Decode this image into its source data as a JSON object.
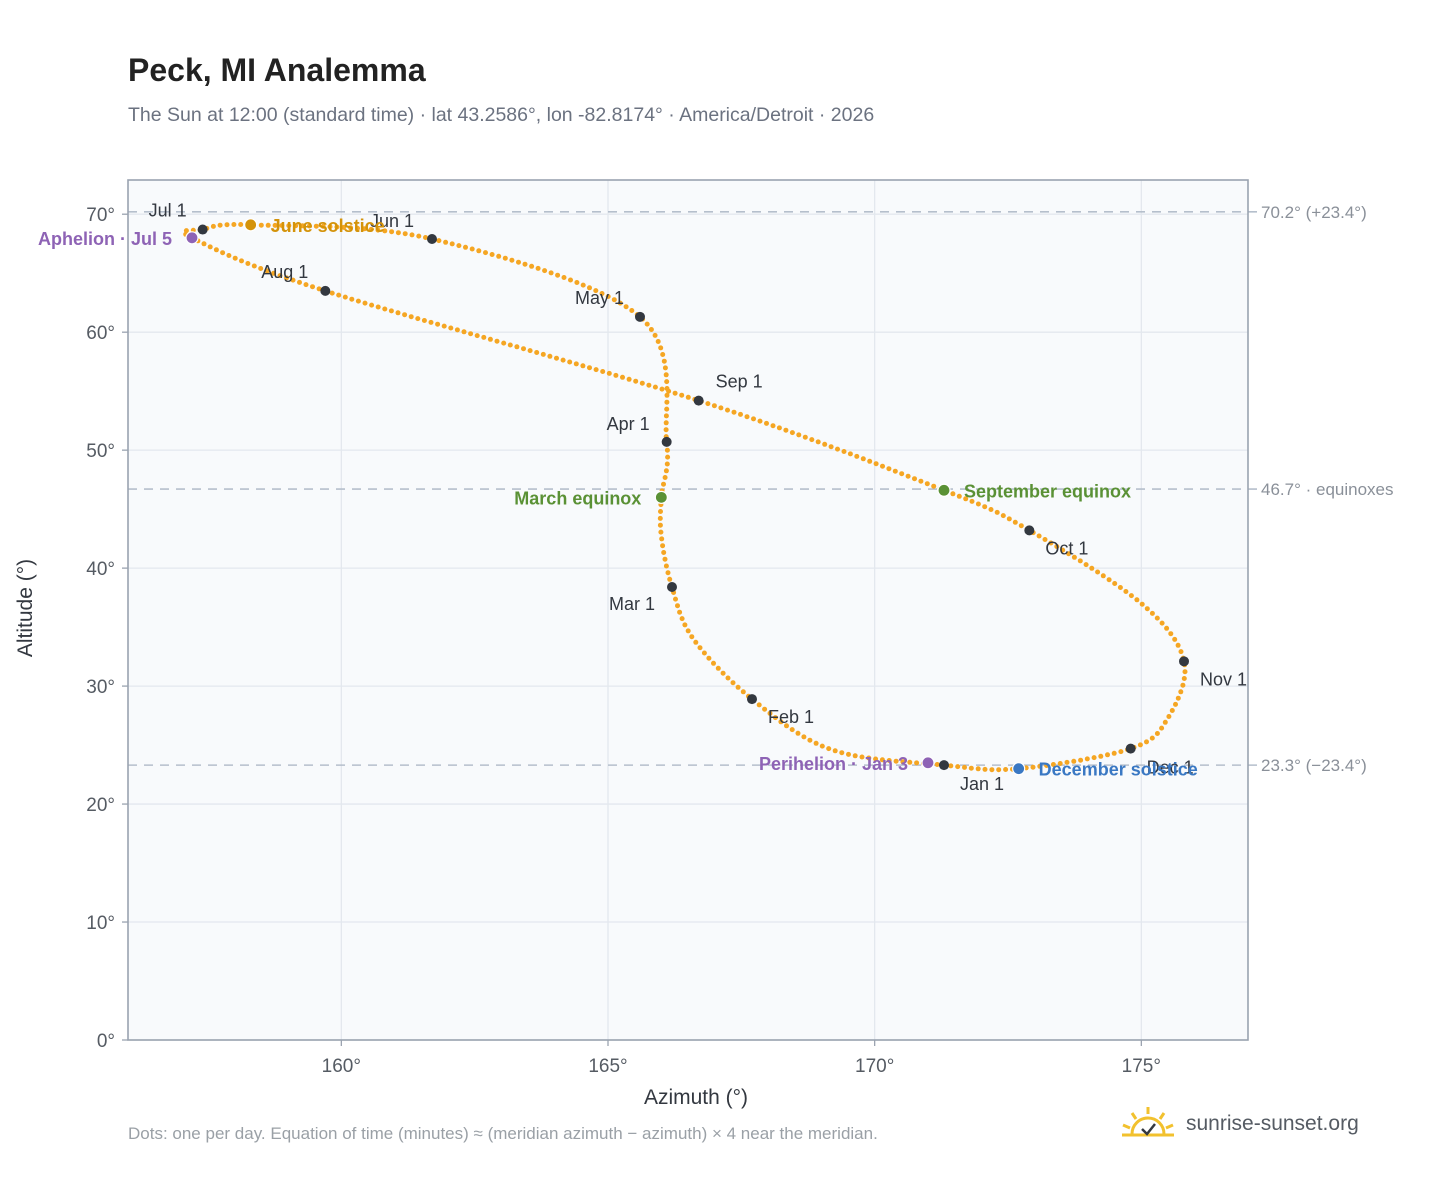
{
  "page": {
    "title": "Peck, MI Analemma",
    "subtitle": "The Sun at 12:00 (standard time) · lat 43.2586°, lon -82.8174° · America/Detroit · 2026",
    "footnote": "Dots: one per day. Equation of time (minutes) ≈ (meridian azimuth − azimuth) × 4 near the meridian.",
    "brand": "sunrise-sunset.org"
  },
  "colors": {
    "curve": "#f5a623",
    "month_marker": "#333840",
    "aphelion": "#8e63b5",
    "perihelion": "#8e63b5",
    "june_solstice": "#d4930a",
    "december_solstice": "#3a78c3",
    "equinox": "#5a9135",
    "reference_line": "#b5bfcc",
    "plot_bg": "#f8fafc",
    "frame": "#9aa3b0",
    "grid": "#e3e8ee",
    "brand_sun": "#f2c12e"
  },
  "chart_data": {
    "type": "scatter",
    "title": "Peck, MI Analemma",
    "subtitle": "The Sun at 12:00 (standard time) · lat 43.2586°, lon -82.8174° · America/Detroit · 2026",
    "xlabel": "Azimuth (°)",
    "ylabel": "Altitude (°)",
    "xlim": [
      156,
      177
    ],
    "ylim": [
      0,
      70
    ],
    "xticks": [
      160,
      165,
      170,
      175
    ],
    "yticks": [
      0,
      10,
      20,
      30,
      40,
      50,
      60,
      70
    ],
    "xtick_labels": [
      "160°",
      "165°",
      "170°",
      "175°"
    ],
    "ytick_labels": [
      "0°",
      "10°",
      "20°",
      "30°",
      "40°",
      "50°",
      "60°",
      "70°"
    ],
    "grid": true,
    "legend": "none",
    "path_points": [
      {
        "x": 171.3,
        "y": 23.3
      },
      {
        "x": 169.2,
        "y": 24.6
      },
      {
        "x": 167.7,
        "y": 28.9
      },
      {
        "x": 166.6,
        "y": 34.0
      },
      {
        "x": 166.2,
        "y": 38.4
      },
      {
        "x": 166.0,
        "y": 42.7
      },
      {
        "x": 166.0,
        "y": 46.0
      },
      {
        "x": 166.1,
        "y": 50.7
      },
      {
        "x": 165.6,
        "y": 61.3
      },
      {
        "x": 161.7,
        "y": 67.9
      },
      {
        "x": 158.3,
        "y": 69.1
      },
      {
        "x": 157.4,
        "y": 68.7
      },
      {
        "x": 157.2,
        "y": 68.0
      },
      {
        "x": 159.7,
        "y": 63.5
      },
      {
        "x": 166.7,
        "y": 54.2
      },
      {
        "x": 171.3,
        "y": 46.6
      },
      {
        "x": 172.9,
        "y": 43.2
      },
      {
        "x": 175.0,
        "y": 37.0
      },
      {
        "x": 175.8,
        "y": 32.1
      },
      {
        "x": 175.5,
        "y": 27.3
      },
      {
        "x": 174.8,
        "y": 24.7
      },
      {
        "x": 172.7,
        "y": 23.0
      },
      {
        "x": 171.3,
        "y": 23.3
      }
    ],
    "month_markers": [
      {
        "label": "Jan 1",
        "x": 171.3,
        "y": 23.3,
        "dx": 16,
        "dy": 25,
        "anchor": "start"
      },
      {
        "label": "Feb 1",
        "x": 167.7,
        "y": 28.9,
        "dx": 16,
        "dy": 24,
        "anchor": "start"
      },
      {
        "label": "Mar 1",
        "x": 166.2,
        "y": 38.4,
        "dx": -17,
        "dy": 23,
        "anchor": "end"
      },
      {
        "label": "Apr 1",
        "x": 166.1,
        "y": 50.7,
        "dx": -17,
        "dy": -12,
        "anchor": "end"
      },
      {
        "label": "May 1",
        "x": 165.6,
        "y": 61.3,
        "dx": -16,
        "dy": -13,
        "anchor": "end"
      },
      {
        "label": "Jun 1",
        "x": 161.7,
        "y": 67.9,
        "dx": -18,
        "dy": -12,
        "anchor": "end"
      },
      {
        "label": "Jul 1",
        "x": 157.4,
        "y": 68.7,
        "dx": -16,
        "dy": -13,
        "anchor": "end"
      },
      {
        "label": "Aug 1",
        "x": 159.7,
        "y": 63.5,
        "dx": -17,
        "dy": -13,
        "anchor": "end"
      },
      {
        "label": "Sep 1",
        "x": 166.7,
        "y": 54.2,
        "dx": 17,
        "dy": -13,
        "anchor": "start"
      },
      {
        "label": "Oct 1",
        "x": 172.9,
        "y": 43.2,
        "dx": 16,
        "dy": 24,
        "anchor": "start"
      },
      {
        "label": "Nov 1",
        "x": 175.8,
        "y": 32.1,
        "dx": 16,
        "dy": 24,
        "anchor": "start"
      },
      {
        "label": "Dec 1",
        "x": 174.8,
        "y": 24.7,
        "dx": 16,
        "dy": 25,
        "anchor": "start"
      }
    ],
    "events": [
      {
        "label": "Aphelion · Jul 5",
        "x": 157.2,
        "y": 68.0,
        "color": "aphelion",
        "dx": -20,
        "dy": 7,
        "anchor": "end"
      },
      {
        "label": "June solstice",
        "x": 158.3,
        "y": 69.1,
        "color": "june_solstice",
        "dx": 20,
        "dy": 7,
        "anchor": "start"
      },
      {
        "label": "March equinox",
        "x": 166.0,
        "y": 46.0,
        "color": "equinox",
        "dx": -20,
        "dy": 7,
        "anchor": "end"
      },
      {
        "label": "September equinox",
        "x": 171.3,
        "y": 46.6,
        "color": "equinox",
        "dx": 20,
        "dy": 7,
        "anchor": "start"
      },
      {
        "label": "Perihelion · Jan 3",
        "x": 171.0,
        "y": 23.5,
        "color": "perihelion",
        "dx": -20,
        "dy": 7,
        "anchor": "end"
      },
      {
        "label": "December solstice",
        "x": 172.7,
        "y": 23.0,
        "color": "december_solstice",
        "dx": 20,
        "dy": 7,
        "anchor": "start"
      }
    ],
    "reference_lines": [
      {
        "y": 70.2,
        "label": "70.2° (+23.4°)"
      },
      {
        "y": 46.7,
        "label": "46.7° · equinoxes"
      },
      {
        "y": 23.3,
        "label": "23.3° (−23.4°)"
      }
    ]
  }
}
